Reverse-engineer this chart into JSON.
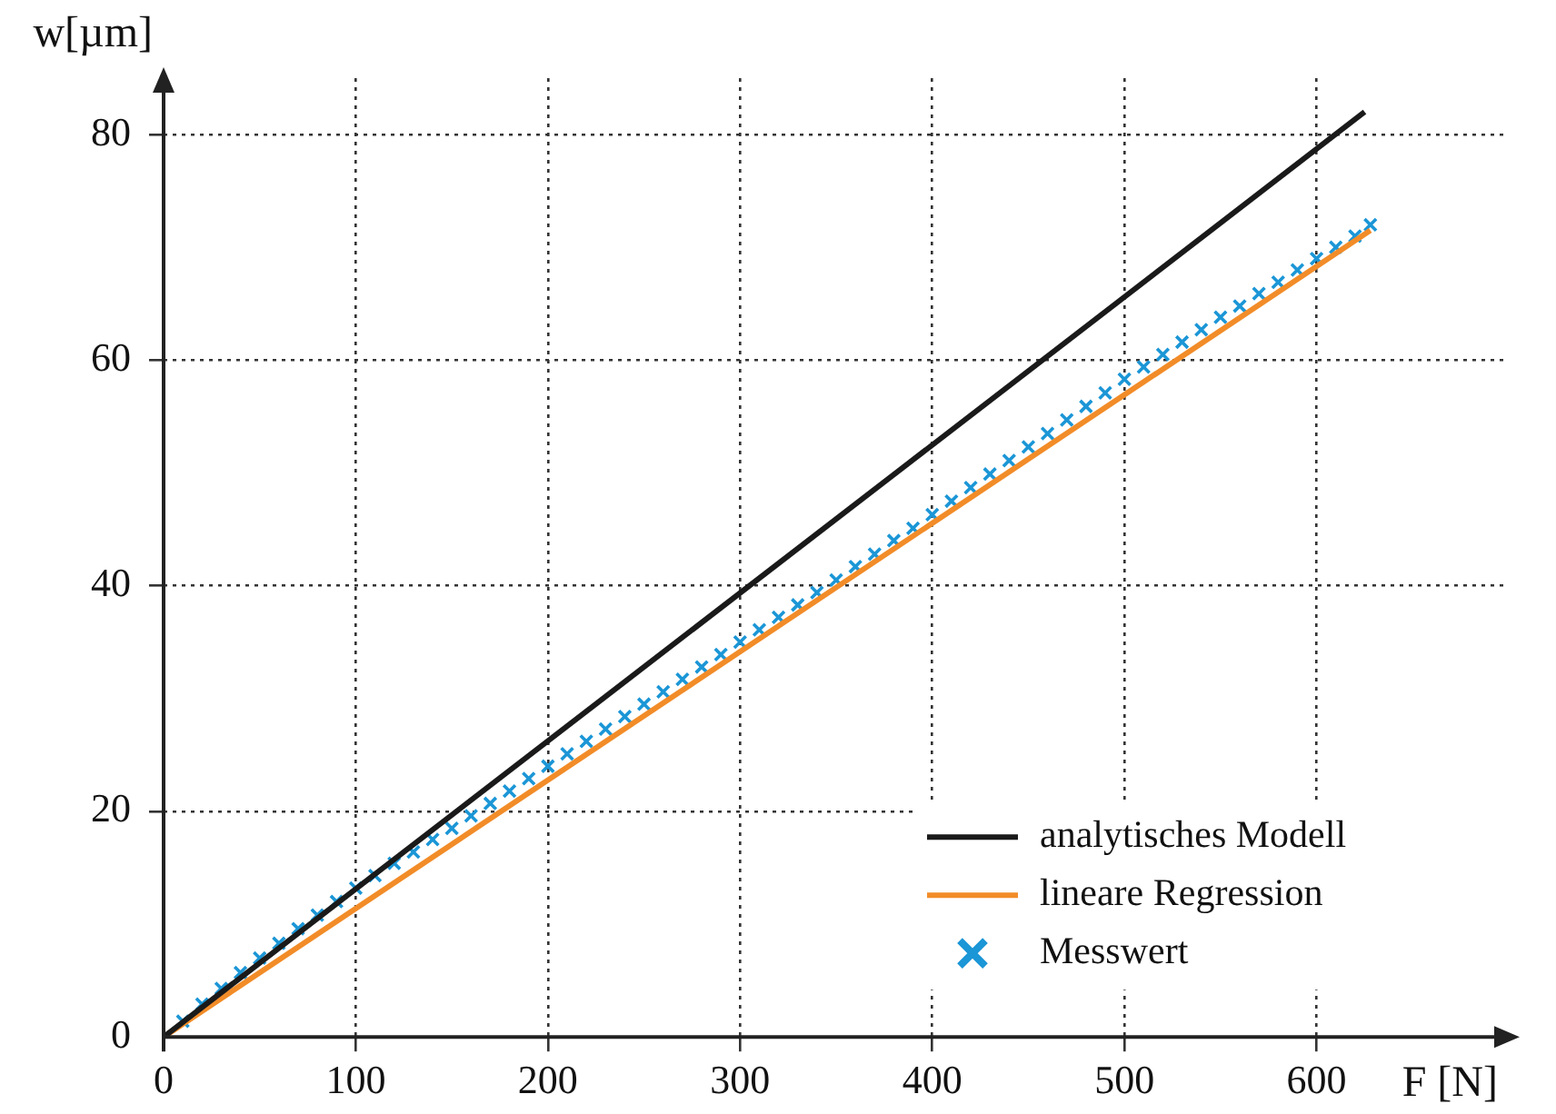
{
  "chart_data": {
    "type": "line",
    "xlabel": "F [N]",
    "ylabel": "w[µm]",
    "xlim": [
      0,
      700
    ],
    "ylim": [
      0,
      85
    ],
    "xticks": [
      0,
      100,
      200,
      300,
      400,
      500,
      600
    ],
    "yticks": [
      0,
      20,
      40,
      60,
      80
    ],
    "grid": true,
    "legend": "bottom right",
    "series": [
      {
        "name": "analytisches Modell",
        "type": "line",
        "color": "#1a1a1a",
        "marker": "none",
        "x": [
          0,
          625
        ],
        "values": [
          0,
          82
        ]
      },
      {
        "name": "lineare Regression",
        "type": "line",
        "color": "#f28c28",
        "marker": "none",
        "x": [
          0,
          628
        ],
        "values": [
          0,
          71.5
        ]
      },
      {
        "name": "Messwert",
        "type": "scatter",
        "color": "#1b96d6",
        "marker": "cross",
        "x": [
          0,
          10,
          20,
          30,
          40,
          50,
          60,
          70,
          80,
          90,
          100,
          110,
          120,
          130,
          140,
          150,
          160,
          170,
          180,
          190,
          200,
          210,
          220,
          230,
          240,
          250,
          260,
          270,
          280,
          290,
          300,
          310,
          320,
          330,
          340,
          350,
          360,
          370,
          380,
          390,
          400,
          410,
          420,
          430,
          440,
          450,
          460,
          470,
          480,
          490,
          500,
          510,
          520,
          530,
          540,
          550,
          560,
          570,
          580,
          590,
          600,
          610,
          620,
          628
        ],
        "values": [
          0,
          1.4,
          2.9,
          4.3,
          5.7,
          7.0,
          8.3,
          9.6,
          10.8,
          12.0,
          13.2,
          14.3,
          15.4,
          16.4,
          17.5,
          18.5,
          19.6,
          20.7,
          21.8,
          22.9,
          24.0,
          25.1,
          26.2,
          27.3,
          28.4,
          29.5,
          30.6,
          31.7,
          32.8,
          33.9,
          35.0,
          36.1,
          37.2,
          38.3,
          39.4,
          40.5,
          41.7,
          42.8,
          44.0,
          45.1,
          46.3,
          47.5,
          48.7,
          49.9,
          51.1,
          52.3,
          53.5,
          54.7,
          55.9,
          57.1,
          58.3,
          59.4,
          60.5,
          61.6,
          62.7,
          63.8,
          64.8,
          65.9,
          66.9,
          68.0,
          69.0,
          70.0,
          71.0,
          72.0
        ]
      }
    ]
  }
}
